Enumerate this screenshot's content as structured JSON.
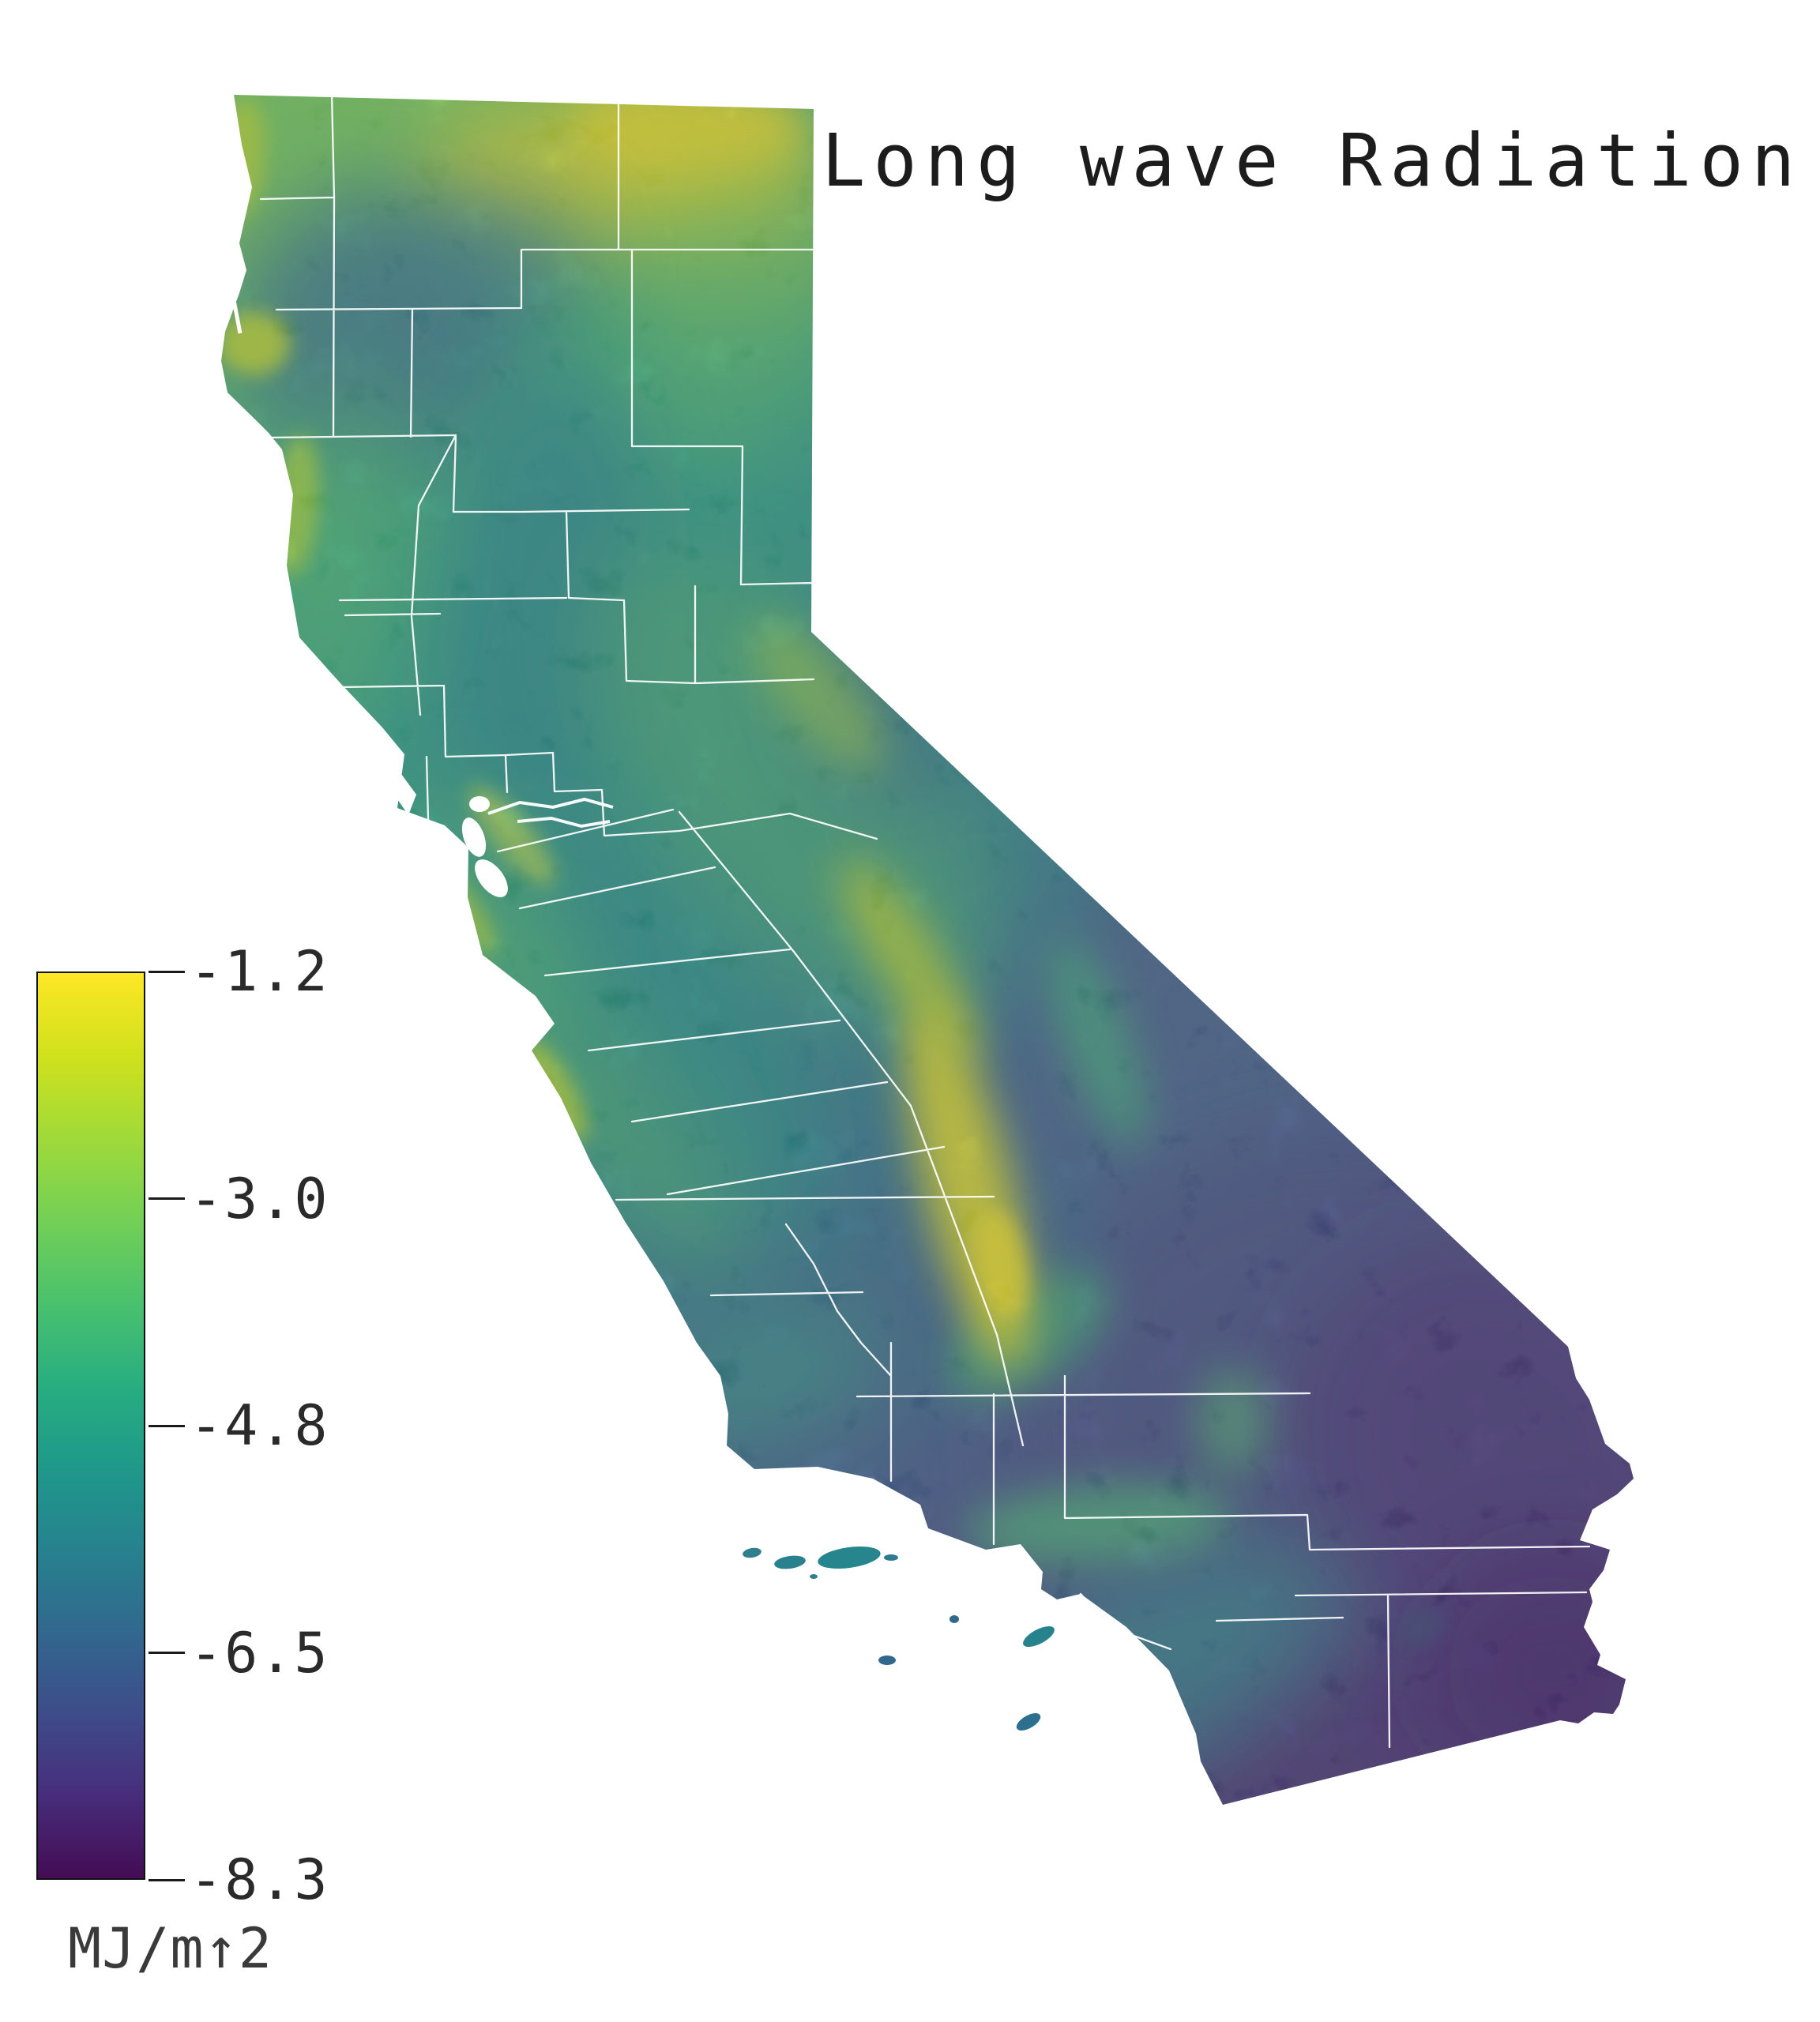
{
  "title": "Long wave Radiation",
  "colorbar": {
    "orientation": "vertical",
    "position": "left",
    "ticks": [
      "-1.2",
      "-3.0",
      "-4.8",
      "-6.5",
      "-8.3"
    ],
    "units_label": "MJ/m↑2",
    "palette_name": "viridis",
    "max_label": "-1.2",
    "min_label": "-8.3",
    "gradient_stops": [
      "#fde725",
      "#d0e11c",
      "#a0da39",
      "#73d056",
      "#4ac16d",
      "#28ae80",
      "#1f998a",
      "#26828e",
      "#31688e",
      "#3e4c8a",
      "#472d7b",
      "#440c54"
    ]
  },
  "map": {
    "region_label": "California with county boundaries",
    "boundary_color": "#ffffff",
    "background_color": "#ffffff",
    "no_data_color": "#ffffff"
  },
  "chart_data": {
    "type": "heatmap",
    "title": "Long wave Radiation",
    "variable": "net long wave radiation",
    "units": "MJ/m↑2",
    "region": "California, USA (raster over county boundaries)",
    "palette": "viridis",
    "value_range": [
      -8.3,
      -1.2
    ],
    "colorbar_ticks": [
      -1.2,
      -3.0,
      -4.8,
      -6.5,
      -8.3
    ],
    "legend_position": "left",
    "grid": false,
    "spatial_pattern": [
      {
        "area": "Northeastern plateau (Modoc / Lassen)",
        "approx_value": -1.5
      },
      {
        "area": "North coast ridges (Del Norte / Mendocino)",
        "approx_value": -2.5
      },
      {
        "area": "Klamath interior valleys",
        "approx_value": -5.5
      },
      {
        "area": "Central Valley",
        "approx_value": -4.8
      },
      {
        "area": "Sierra Nevada crest",
        "approx_value": -1.5
      },
      {
        "area": "Coast ranges (Big Sur, Bay Area hills)",
        "approx_value": -3.2
      },
      {
        "area": "South coast Los Angeles to San Diego",
        "approx_value": -4.5
      },
      {
        "area": "Mojave Desert",
        "approx_value": -6.5
      },
      {
        "area": "Southeastern Colorado Desert corner",
        "approx_value": -8.0
      }
    ]
  }
}
